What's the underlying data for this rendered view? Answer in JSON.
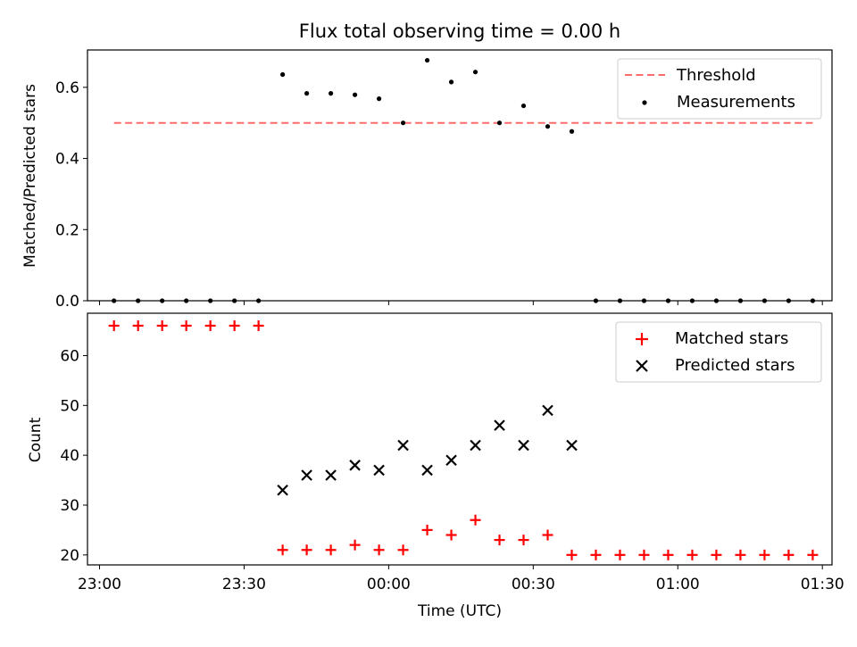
{
  "title": "Flux total observing time = 0.00 h",
  "chart_data": [
    {
      "type": "scatter",
      "ylabel": "Matched/Predicted stars",
      "xlabel": "",
      "xlim": [
        "22:57:30",
        "01:32:00"
      ],
      "ylim": [
        0,
        0.705
      ],
      "yticks": [
        0.0,
        0.2,
        0.4,
        0.6
      ],
      "ytick_labels": [
        "0.0",
        "0.2",
        "0.4",
        "0.6"
      ],
      "threshold": {
        "name": "Threshold",
        "value": 0.5,
        "x_start": "23:03",
        "x_end": "01:28",
        "color": "#ff6b6b",
        "style": "dashed"
      },
      "series": [
        {
          "name": "Measurements",
          "color": "#000000",
          "marker": "dot",
          "x": [
            "23:03",
            "23:08",
            "23:13",
            "23:18",
            "23:23",
            "23:28",
            "23:33",
            "23:38",
            "23:43",
            "23:48",
            "23:53",
            "23:58",
            "00:03",
            "00:08",
            "00:13",
            "00:18",
            "00:23",
            "00:28",
            "00:33",
            "00:38",
            "00:43",
            "00:48",
            "00:53",
            "00:58",
            "01:03",
            "01:08",
            "01:13",
            "01:18",
            "01:23",
            "01:28"
          ],
          "y": [
            0,
            0,
            0,
            0,
            0,
            0,
            0,
            0.636,
            0.583,
            0.583,
            0.579,
            0.568,
            0.5,
            0.676,
            0.615,
            0.643,
            0.5,
            0.548,
            0.49,
            0.476,
            0,
            0,
            0,
            0,
            0,
            0,
            0,
            0,
            0,
            0
          ]
        }
      ],
      "legend": {
        "position": "top-right",
        "entries": [
          "Threshold",
          "Measurements"
        ]
      }
    },
    {
      "type": "scatter",
      "ylabel": "Count",
      "xlabel": "Time (UTC)",
      "xlim": [
        "22:57:30",
        "01:32:00"
      ],
      "ylim": [
        18,
        68.5
      ],
      "yticks": [
        20,
        30,
        40,
        50,
        60
      ],
      "ytick_labels": [
        "20",
        "30",
        "40",
        "50",
        "60"
      ],
      "xticks": [
        "23:00",
        "23:30",
        "00:00",
        "00:30",
        "01:00",
        "01:30"
      ],
      "series": [
        {
          "name": "Matched stars",
          "color": "#ff0000",
          "marker": "plus",
          "x": [
            "23:03",
            "23:08",
            "23:13",
            "23:18",
            "23:23",
            "23:28",
            "23:33",
            "23:38",
            "23:43",
            "23:48",
            "23:53",
            "23:58",
            "00:03",
            "00:08",
            "00:13",
            "00:18",
            "00:23",
            "00:28",
            "00:33",
            "00:38",
            "00:43",
            "00:48",
            "00:53",
            "00:58",
            "01:03",
            "01:08",
            "01:13",
            "01:18",
            "01:23",
            "01:28"
          ],
          "y": [
            66,
            66,
            66,
            66,
            66,
            66,
            66,
            21,
            21,
            21,
            22,
            21,
            21,
            25,
            24,
            27,
            23,
            23,
            24,
            20,
            20,
            20,
            20,
            20,
            20,
            20,
            20,
            20,
            20,
            20
          ]
        },
        {
          "name": "Predicted stars",
          "color": "#000000",
          "marker": "x",
          "x": [
            "23:38",
            "23:43",
            "23:48",
            "23:53",
            "23:58",
            "00:03",
            "00:08",
            "00:13",
            "00:18",
            "00:23",
            "00:28",
            "00:33",
            "00:38"
          ],
          "y": [
            33,
            36,
            36,
            38,
            37,
            42,
            37,
            39,
            42,
            46,
            42,
            49,
            42
          ]
        }
      ],
      "legend": {
        "position": "top-right",
        "entries": [
          "Matched stars",
          "Predicted stars"
        ]
      }
    }
  ]
}
